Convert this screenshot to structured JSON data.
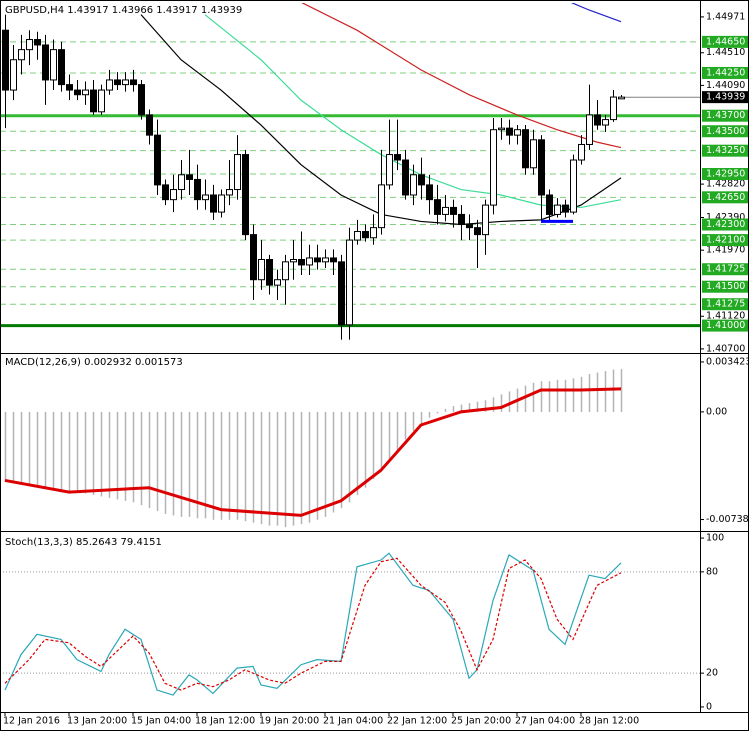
{
  "chart_data": [
    {
      "type": "candlestick",
      "title": "GBPUSD,H4  1.43917 1.43966 1.43917 1.43939",
      "categories": [
        "12 Jan 2016",
        null,
        null,
        null,
        null,
        null,
        null,
        null,
        "13 Jan 20:00",
        null,
        null,
        null,
        null,
        null,
        null,
        null,
        "15 Jan 04:00",
        null,
        null,
        null,
        null,
        null,
        null,
        null,
        "18 Jan 12:00",
        null,
        null,
        null,
        null,
        null,
        null,
        null,
        "19 Jan 20:00",
        null,
        null,
        null,
        null,
        null,
        null,
        null,
        "21 Jan 04:00",
        null,
        null,
        null,
        null,
        null,
        null,
        null,
        "22 Jan 12:00",
        null,
        null,
        null,
        null,
        null,
        null,
        null,
        "25 Jan 20:00",
        null,
        null,
        null,
        null,
        null,
        null,
        null,
        "27 Jan 04:00",
        null,
        null,
        null,
        null,
        null,
        null,
        null,
        "28 Jan 12:00",
        null,
        null,
        null,
        null,
        null
      ],
      "open": [
        1.448,
        1.4403,
        1.4442,
        1.4455,
        1.4468,
        1.4461,
        1.4416,
        1.4455,
        1.441,
        1.4403,
        1.4397,
        1.4403,
        1.4375,
        1.4403,
        1.4416,
        1.441,
        1.4416,
        1.441,
        1.4371,
        1.4345,
        1.4281,
        1.4262,
        1.4275,
        1.4294,
        1.4288,
        1.4262,
        1.4268,
        1.4246,
        1.4268,
        1.4275,
        1.432,
        1.4217,
        1.4159,
        1.4185,
        1.4152,
        1.4159,
        1.4182,
        1.4185,
        1.4178,
        1.4187,
        1.4182,
        1.4187,
        1.4182,
        1.4101,
        1.421,
        1.4221,
        1.4213,
        1.4226,
        1.4281,
        1.432,
        1.4313,
        1.4268,
        1.4294,
        1.4281,
        1.4262,
        1.4243,
        1.4252,
        1.4243,
        1.423,
        1.4226,
        1.4217,
        1.4255,
        1.4352,
        1.4354,
        1.4345,
        1.4352,
        1.4303,
        1.4339,
        1.4268,
        1.4243,
        1.4255,
        1.4246,
        1.4313,
        1.4333,
        1.4371,
        1.4358,
        1.4365,
        1.43917
      ],
      "high": [
        1.45,
        1.4461,
        1.4474,
        1.448,
        1.4478,
        1.4474,
        1.4468,
        1.4465,
        1.4423,
        1.4416,
        1.4414,
        1.4416,
        1.441,
        1.4429,
        1.4426,
        1.4426,
        1.4429,
        1.4416,
        1.4378,
        1.4365,
        1.4288,
        1.4294,
        1.4313,
        1.4326,
        1.4307,
        1.4288,
        1.4281,
        1.4275,
        1.4313,
        1.4345,
        1.4326,
        1.423,
        1.421,
        1.4191,
        1.4172,
        1.4191,
        1.421,
        1.4221,
        1.4204,
        1.4204,
        1.4198,
        1.4198,
        1.4191,
        1.4226,
        1.4236,
        1.423,
        1.4243,
        1.4326,
        1.4365,
        1.4365,
        1.4326,
        1.4307,
        1.4316,
        1.4294,
        1.4281,
        1.4268,
        1.4262,
        1.4255,
        1.4243,
        1.4236,
        1.4262,
        1.4367,
        1.4367,
        1.4365,
        1.4358,
        1.4358,
        1.4352,
        1.4345,
        1.4275,
        1.4264,
        1.4262,
        1.432,
        1.4345,
        1.441,
        1.439,
        1.4371,
        1.4403,
        1.43966
      ],
      "low": [
        1.4354,
        1.439,
        1.4423,
        1.4435,
        1.4442,
        1.4384,
        1.4403,
        1.4401,
        1.439,
        1.439,
        1.4384,
        1.4371,
        1.4371,
        1.4397,
        1.4403,
        1.4401,
        1.4401,
        1.4365,
        1.4333,
        1.4268,
        1.4255,
        1.4246,
        1.4262,
        1.4268,
        1.4249,
        1.4249,
        1.4236,
        1.4239,
        1.4255,
        1.4262,
        1.421,
        1.4133,
        1.4146,
        1.414,
        1.4133,
        1.4127,
        1.4159,
        1.4165,
        1.4165,
        1.4172,
        1.4174,
        1.4165,
        1.4082,
        1.4082,
        1.4204,
        1.4208,
        1.4204,
        1.4217,
        1.4275,
        1.43,
        1.4262,
        1.4255,
        1.4262,
        1.4243,
        1.423,
        1.4234,
        1.4226,
        1.421,
        1.421,
        1.4174,
        1.4191,
        1.4243,
        1.4339,
        1.4333,
        1.4333,
        1.4294,
        1.4294,
        1.4234,
        1.4234,
        1.4239,
        1.4239,
        1.4243,
        1.4307,
        1.4326,
        1.4352,
        1.4349,
        1.4362,
        1.43917
      ],
      "close": [
        1.4403,
        1.4442,
        1.4455,
        1.4468,
        1.4461,
        1.4416,
        1.4455,
        1.441,
        1.4403,
        1.4397,
        1.4403,
        1.4375,
        1.4403,
        1.4416,
        1.441,
        1.4416,
        1.441,
        1.4371,
        1.4345,
        1.4281,
        1.4262,
        1.4275,
        1.4294,
        1.4288,
        1.4262,
        1.4268,
        1.4246,
        1.4268,
        1.4275,
        1.432,
        1.4217,
        1.4159,
        1.4185,
        1.4152,
        1.4159,
        1.4182,
        1.4185,
        1.4178,
        1.4187,
        1.4182,
        1.4187,
        1.4182,
        1.4101,
        1.421,
        1.4221,
        1.4213,
        1.4226,
        1.4281,
        1.432,
        1.4313,
        1.4268,
        1.4294,
        1.4281,
        1.4262,
        1.4243,
        1.4252,
        1.4243,
        1.423,
        1.4226,
        1.4217,
        1.4255,
        1.4352,
        1.4354,
        1.4345,
        1.4352,
        1.4303,
        1.4339,
        1.4268,
        1.4243,
        1.4255,
        1.4246,
        1.4313,
        1.4333,
        1.4371,
        1.4358,
        1.4365,
        1.4394,
        1.43939
      ],
      "ylim": [
        1.4066,
        1.4515
      ],
      "yticks": [
        1.44971,
        {
          "value": 1.4451,
          "label": "1.44510"
        },
        {
          "value": 1.4409,
          "label": "1.44090"
        },
        {
          "value": 1.4282,
          "label": "1.42820"
        },
        {
          "value": 1.4239,
          "label": "1.42390"
        },
        {
          "value": 1.4197,
          "label": "1.41970"
        },
        {
          "value": 1.4112,
          "label": "1.41120"
        },
        {
          "value": 1.407,
          "label": "1.40700"
        }
      ],
      "levels": [
        {
          "value": 1.4465,
          "label": "1.44650",
          "style": "dashed",
          "color": "#7fd07f"
        },
        {
          "value": 1.4425,
          "label": "1.44250",
          "style": "dashed",
          "color": "#7fd07f"
        },
        {
          "value": 1.437,
          "label": "1.43700",
          "style": "thick",
          "color": "#33bb33"
        },
        {
          "value": 1.435,
          "label": "1.43500",
          "style": "dashed",
          "color": "#7fd07f"
        },
        {
          "value": 1.4325,
          "label": "1.43250",
          "style": "dashed",
          "color": "#7fd07f"
        },
        {
          "value": 1.4295,
          "label": "1.42950",
          "style": "dashed",
          "color": "#7fd07f"
        },
        {
          "value": 1.4265,
          "label": "1.42650",
          "style": "dashed",
          "color": "#7fd07f"
        },
        {
          "value": 1.423,
          "label": "1.42300",
          "style": "dashed",
          "color": "#7fd07f"
        },
        {
          "value": 1.421,
          "label": "1.42100",
          "style": "dashed",
          "color": "#7fd07f"
        },
        {
          "value": 1.41725,
          "label": "1.41725",
          "style": "dashed",
          "color": "#7fd07f"
        },
        {
          "value": 1.415,
          "label": "1.41500",
          "style": "dashed",
          "color": "#7fd07f"
        },
        {
          "value": 1.41275,
          "label": "1.41275",
          "style": "dashed",
          "color": "#7fd07f"
        },
        {
          "value": 1.41,
          "label": "1.41000",
          "style": "thick",
          "color": "#007a00"
        }
      ],
      "last_price": {
        "value": 1.43939,
        "label": "1.43939"
      },
      "series": [
        {
          "color": "#000000",
          "x": [
            17,
            22,
            27,
            32,
            37,
            42,
            47,
            52,
            57,
            62,
            67,
            72,
            77
          ],
          "values": [
            1.45,
            1.4442,
            1.4403,
            1.4358,
            1.4307,
            1.4268,
            1.4243,
            1.4234,
            1.423,
            1.4234,
            1.4236,
            1.4255,
            1.429
          ]
        },
        {
          "color": "#3ddc97",
          "x": [
            25,
            32,
            37,
            42,
            47,
            52,
            57,
            62,
            67,
            72,
            77
          ],
          "values": [
            1.45,
            1.4442,
            1.439,
            1.4352,
            1.432,
            1.4294,
            1.4275,
            1.4268,
            1.4255,
            1.4252,
            1.4262
          ]
        },
        {
          "color": "#cc2222",
          "x": [
            37,
            44,
            52,
            58,
            64,
            69,
            74,
            77
          ],
          "values": [
            1.4516,
            1.448,
            1.4429,
            1.4397,
            1.4371,
            1.4352,
            1.4336,
            1.4329
          ]
        },
        {
          "color": "#2222cc",
          "x": [
            70,
            73,
            77
          ],
          "values": [
            1.4519,
            1.4506,
            1.4491
          ]
        }
      ],
      "segments": [
        {
          "value": 1.4234,
          "x": [
            67,
            71
          ],
          "color": "#0000ff"
        }
      ]
    },
    {
      "type": "macd",
      "title": "MACD(12,26,9) 0.002932 0.001573",
      "ylim": [
        -0.0081,
        0.0039
      ],
      "yticks": [
        0.003423,
        {
          "value": 0,
          "label": "0.00"
        },
        -0.007382
      ],
      "color": "#b4b4b4",
      "values": [
        -0.0048,
        -0.0049,
        -0.005,
        -0.005,
        -0.0051,
        -0.0052,
        -0.0053,
        -0.0054,
        -0.0055,
        -0.0055,
        -0.0056,
        -0.0057,
        -0.0058,
        -0.0059,
        -0.006,
        -0.0061,
        -0.0062,
        -0.0064,
        -0.0066,
        -0.0068,
        -0.007,
        -0.0071,
        -0.0072,
        -0.0072,
        -0.0073,
        -0.0073,
        -0.0074,
        -0.0074,
        -0.0074,
        -0.0074,
        -0.0075,
        -0.0076,
        -0.0077,
        -0.0078,
        -0.0078,
        -0.0079,
        -0.0078,
        -0.0077,
        -0.0076,
        -0.0074,
        -0.0072,
        -0.0069,
        -0.0066,
        -0.0062,
        -0.0057,
        -0.0052,
        -0.0046,
        -0.004,
        -0.0033,
        -0.0026,
        -0.0019,
        -0.0013,
        -0.0008,
        -0.0004,
        -0.0001,
        0.0002,
        0.0004,
        0.0005,
        0.0006,
        0.0007,
        0.0008,
        0.001,
        0.0012,
        0.0014,
        0.0016,
        0.0018,
        0.002,
        0.0021,
        0.0021,
        0.0022,
        0.0022,
        0.0023,
        0.0024,
        0.0026,
        0.0027,
        0.0028,
        0.0029,
        0.002932
      ],
      "series": [
        {
          "color": "#dd0000",
          "x": [
            0,
            8,
            18,
            27,
            37,
            42,
            47,
            52,
            57,
            62,
            67,
            72,
            77
          ],
          "values": [
            -0.0047,
            -0.0055,
            -0.0052,
            -0.0067,
            -0.0071,
            -0.0061,
            -0.004,
            -0.0009,
            0.0,
            0.0003,
            0.0015,
            0.0015,
            0.001573
          ]
        }
      ]
    },
    {
      "type": "stochastic",
      "title": "Stoch(13,3,3) 85.2643 79.4151",
      "ylim": [
        -3,
        103
      ],
      "yticks": [
        100,
        80,
        20,
        0
      ],
      "levels": [
        80,
        20
      ],
      "series": [
        {
          "color": "#2aa8b8",
          "dashed": false,
          "x": [
            0,
            2,
            4,
            7,
            9,
            12,
            13,
            15,
            17,
            19,
            21,
            23,
            24,
            26,
            29,
            31,
            32,
            34,
            37,
            39,
            42,
            44,
            47,
            48,
            51,
            53,
            56,
            58,
            59,
            61,
            63,
            66,
            68,
            70,
            73,
            75,
            77
          ],
          "values": [
            10,
            31,
            43,
            40,
            28,
            21,
            31,
            46,
            40,
            10,
            7,
            19,
            16,
            8,
            23,
            24,
            13,
            11,
            25,
            28,
            27,
            83,
            87,
            91,
            72,
            69,
            52,
            17,
            22,
            63,
            90,
            81,
            46,
            37,
            78,
            76,
            85.2643
          ]
        },
        {
          "color": "#dd0000",
          "dashed": true,
          "x": [
            0,
            3,
            5,
            8,
            10,
            12,
            14,
            16,
            18,
            20,
            22,
            24,
            26,
            28,
            30,
            33,
            35,
            37,
            40,
            42,
            45,
            47,
            49,
            52,
            55,
            57,
            59,
            61,
            63,
            65,
            67,
            69,
            71,
            74,
            76,
            77
          ],
          "values": [
            14,
            28,
            40,
            38,
            30,
            24,
            33,
            42,
            32,
            14,
            10,
            14,
            12,
            16,
            22,
            16,
            14,
            20,
            27,
            27,
            72,
            86,
            88,
            72,
            62,
            45,
            22,
            40,
            82,
            87,
            76,
            52,
            40,
            72,
            77,
            79.4151
          ]
        }
      ]
    }
  ]
}
